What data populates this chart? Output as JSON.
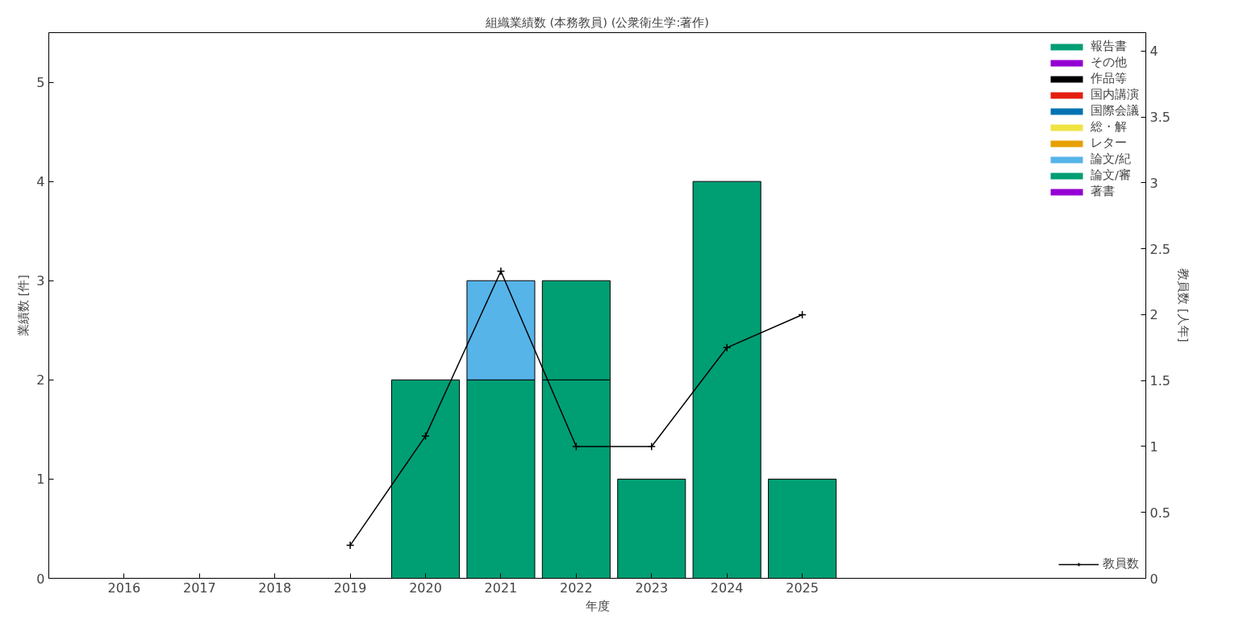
{
  "chart_data": {
    "type": "bar",
    "title": "組織業績数 (本務教員) (公衆衛生学:著作)",
    "xlabel": "年度",
    "ylabel": "業績数 [件]",
    "y2label": "教員数 [人年]",
    "x": [
      2016,
      2017,
      2018,
      2019,
      2020,
      2021,
      2022,
      2023,
      2024,
      2025
    ],
    "stacked": true,
    "legend": "top right",
    "grid": false,
    "xlim": [
      2015,
      2029.56
    ],
    "xticks": [
      2016,
      2017,
      2018,
      2019,
      2020,
      2021,
      2022,
      2023,
      2024,
      2025
    ],
    "ylim": [
      0,
      5.5
    ],
    "yticks": [
      0,
      1,
      2,
      3,
      4,
      5
    ],
    "y2lim": [
      0,
      4.14
    ],
    "y2ticks": [
      0,
      0.5,
      1,
      1.5,
      2,
      2.5,
      3,
      3.5,
      4
    ],
    "series": [
      {
        "name": "著書",
        "color": "#9400d3",
        "values": [
          0,
          0,
          0,
          0,
          0,
          0,
          0,
          0,
          0,
          0
        ]
      },
      {
        "name": "論文/審",
        "color": "#009e73",
        "values": [
          0,
          0,
          0,
          0,
          2,
          2,
          2,
          1,
          4,
          1
        ]
      },
      {
        "name": "論文/紀",
        "color": "#56b4e9",
        "values": [
          0,
          0,
          0,
          0,
          0,
          1,
          0,
          0,
          0,
          0
        ]
      },
      {
        "name": "レター",
        "color": "#e69f00",
        "values": [
          0,
          0,
          0,
          0,
          0,
          0,
          0,
          0,
          0,
          0
        ]
      },
      {
        "name": "総・解",
        "color": "#f0e442",
        "values": [
          0,
          0,
          0,
          0,
          0,
          0,
          0,
          0,
          0,
          0
        ]
      },
      {
        "name": "国際会議",
        "color": "#0072b2",
        "values": [
          0,
          0,
          0,
          0,
          0,
          0,
          0,
          0,
          0,
          0
        ]
      },
      {
        "name": "国内講演",
        "color": "#e51e10",
        "values": [
          0,
          0,
          0,
          0,
          0,
          0,
          0,
          0,
          0,
          0
        ]
      },
      {
        "name": "作品等",
        "color": "#000000",
        "values": [
          0,
          0,
          0,
          0,
          0,
          0,
          0,
          0,
          0,
          0
        ]
      },
      {
        "name": "その他",
        "color": "#9400d3",
        "values": [
          0,
          0,
          0,
          0,
          0,
          0,
          0,
          0,
          0,
          0
        ]
      },
      {
        "name": "報告書",
        "color": "#009e73",
        "values": [
          0,
          0,
          0,
          0,
          0,
          0,
          1,
          0,
          0,
          0
        ]
      },
      {
        "name": "教員数",
        "type": "line",
        "axis": "y2",
        "marker": "cross",
        "line_style": "solid",
        "color": "#000000",
        "values": [
          null,
          null,
          null,
          0.25,
          1.08,
          2.33,
          1,
          1,
          1.75,
          2
        ]
      }
    ]
  }
}
